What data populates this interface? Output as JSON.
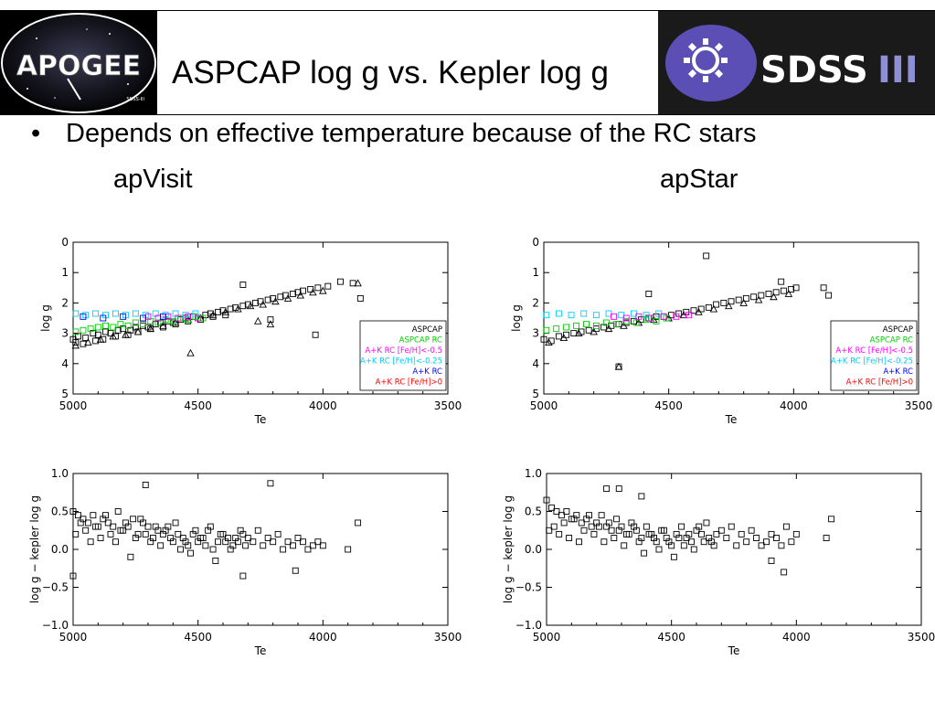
{
  "header": {
    "title": "ASPCAP log g vs. Kepler log g",
    "left_logo_text": "APOGEE",
    "left_logo_subtext": "SDSS-III",
    "right_logo_text": "SDSS",
    "right_logo_suffix": "III"
  },
  "bullet": {
    "marker": "•",
    "text": "Depends on effective temperature because of the RC stars"
  },
  "panels": {
    "left_label": "apVisit",
    "right_label": "apStar"
  },
  "colors": {
    "aspcap": "#000000",
    "aspcap_rc": "#00cc00",
    "rc_metal_poor": "#ff00ff",
    "rc_mid": "#00ccff",
    "rc_all": "#0000ff",
    "rc_metal_rich": "#ff0000"
  },
  "chart_data": [
    {
      "id": "apvisit-logg",
      "type": "scatter",
      "xlabel": "Te",
      "ylabel": "log g",
      "xlim": [
        5000,
        3500
      ],
      "ylim": [
        0,
        5
      ],
      "y_inverted": true,
      "xticks": [
        "5000",
        "4500",
        "4000",
        "3500"
      ],
      "yticks": [
        "0",
        "1",
        "2",
        "3",
        "4",
        "5"
      ],
      "legend_position": "bottom-right",
      "legend": [
        {
          "label": "ASPCAP",
          "color": "#000000"
        },
        {
          "label": "ASPCAP RC",
          "color": "#00cc00"
        },
        {
          "label": "A+K RC [Fe/H]<-0.5",
          "color": "#ff00ff"
        },
        {
          "label": "A+K RC [Fe/H]<-0.25",
          "color": "#00ccff"
        },
        {
          "label": "A+K RC",
          "color": "#0000ff"
        },
        {
          "label": "A+K RC [Fe/H]>0",
          "color": "#ff0000"
        }
      ],
      "series": [
        {
          "color": "#000000",
          "marker": "square",
          "x": [
            5000,
            4980,
            4950,
            4920,
            4900,
            4870,
            4850,
            4820,
            4800,
            4770,
            4750,
            4720,
            4700,
            4670,
            4650,
            4620,
            4600,
            4570,
            4550,
            4520,
            4500,
            4470,
            4450,
            4420,
            4400,
            4370,
            4350,
            4320,
            4300,
            4270,
            4250,
            4220,
            4200,
            4170,
            4150,
            4120,
            4100,
            4080,
            4050,
            4020,
            3980,
            3930,
            3880,
            3850,
            4320,
            4210,
            4030,
            4990,
            4960,
            4910,
            4880,
            4830,
            4780,
            4740,
            4690,
            4640,
            4590,
            4540,
            4490,
            4440,
            4390
          ],
          "y": [
            3.2,
            3.1,
            3.15,
            3.0,
            3.05,
            2.95,
            3.0,
            2.9,
            2.85,
            2.9,
            2.8,
            2.75,
            2.8,
            2.7,
            2.65,
            2.6,
            2.65,
            2.55,
            2.5,
            2.45,
            2.5,
            2.4,
            2.35,
            2.3,
            2.25,
            2.2,
            2.15,
            2.1,
            2.05,
            2.0,
            1.95,
            1.9,
            1.85,
            1.8,
            1.75,
            1.7,
            1.65,
            1.6,
            1.55,
            1.5,
            1.45,
            1.3,
            1.35,
            1.85,
            1.4,
            2.55,
            3.05,
            3.3,
            3.35,
            3.25,
            3.2,
            3.1,
            3.05,
            2.95,
            2.85,
            2.8,
            2.7,
            2.6,
            2.55,
            2.45,
            2.4
          ]
        },
        {
          "color": "#000000",
          "marker": "triangle",
          "x": [
            4990,
            4940,
            4890,
            4840,
            4790,
            4740,
            4690,
            4640,
            4590,
            4540,
            4490,
            4440,
            4390,
            4340,
            4290,
            4240,
            4190,
            4140,
            4090,
            4040,
            4000,
            3860,
            4530,
            4260,
            4210
          ],
          "y": [
            3.4,
            3.3,
            3.2,
            3.1,
            3.05,
            2.95,
            2.85,
            2.75,
            2.65,
            2.55,
            2.5,
            2.4,
            2.3,
            2.2,
            2.1,
            2.05,
            1.95,
            1.85,
            1.75,
            1.65,
            1.6,
            1.35,
            3.65,
            2.6,
            2.7
          ]
        },
        {
          "color": "#00cc00",
          "marker": "square",
          "x": [
            4990,
            4960,
            4930,
            4900,
            4870,
            4840,
            4810,
            4780,
            4750,
            4720,
            4690,
            4660,
            4630,
            4600,
            4570,
            4540,
            4510,
            4480
          ],
          "y": [
            2.95,
            2.9,
            2.85,
            2.8,
            2.75,
            2.8,
            2.7,
            2.75,
            2.65,
            2.7,
            2.6,
            2.65,
            2.55,
            2.6,
            2.5,
            2.55,
            2.45,
            2.5
          ]
        },
        {
          "color": "#00ccff",
          "marker": "square",
          "x": [
            4990,
            4950,
            4910,
            4870,
            4830,
            4790,
            4750,
            4710,
            4670,
            4630,
            4590,
            4550,
            4510
          ],
          "y": [
            2.35,
            2.4,
            2.35,
            2.4,
            2.35,
            2.4,
            2.35,
            2.4,
            2.35,
            2.4,
            2.35,
            2.4,
            2.35
          ]
        },
        {
          "color": "#ff00ff",
          "marker": "square",
          "x": [
            4700,
            4660,
            4620,
            4580,
            4540,
            4500
          ],
          "y": [
            2.45,
            2.5,
            2.45,
            2.5,
            2.45,
            2.5
          ]
        },
        {
          "color": "#0000ff",
          "marker": "square",
          "x": [
            4960,
            4880,
            4800,
            4720,
            4640
          ],
          "y": [
            2.45,
            2.5,
            2.45,
            2.5,
            2.45
          ]
        }
      ]
    },
    {
      "id": "apstar-logg",
      "type": "scatter",
      "xlabel": "Te",
      "ylabel": "log g",
      "xlim": [
        5000,
        3500
      ],
      "ylim": [
        0,
        5
      ],
      "y_inverted": true,
      "xticks": [
        "5000",
        "4500",
        "4000",
        "3500"
      ],
      "yticks": [
        "0",
        "1",
        "2",
        "3",
        "4",
        "5"
      ],
      "legend_position": "bottom-right",
      "legend": [
        {
          "label": "ASPCAP",
          "color": "#000000"
        },
        {
          "label": "ASPCAP RC",
          "color": "#00cc00"
        },
        {
          "label": "A+K RC [Fe/H]<-0.5",
          "color": "#ff00ff"
        },
        {
          "label": "A+K RC [Fe/H]<-0.25",
          "color": "#00ccff"
        },
        {
          "label": "A+K RC",
          "color": "#0000ff"
        },
        {
          "label": "A+K RC [Fe/H]>0",
          "color": "#ff0000"
        }
      ],
      "series": [
        {
          "color": "#000000",
          "marker": "square",
          "x": [
            5000,
            4970,
            4940,
            4910,
            4880,
            4850,
            4820,
            4790,
            4760,
            4730,
            4700,
            4670,
            4640,
            4610,
            4580,
            4550,
            4520,
            4490,
            4460,
            4430,
            4400,
            4370,
            4340,
            4310,
            4280,
            4250,
            4220,
            4190,
            4160,
            4130,
            4100,
            4070,
            4040,
            4010,
            3990,
            3880,
            3860,
            4700,
            4580,
            4050,
            4350
          ],
          "y": [
            3.2,
            3.25,
            3.1,
            3.05,
            3.0,
            2.95,
            2.9,
            2.85,
            2.8,
            2.75,
            2.7,
            2.65,
            2.6,
            2.55,
            2.5,
            2.45,
            2.45,
            2.4,
            2.35,
            2.3,
            2.25,
            2.2,
            2.15,
            2.05,
            2.0,
            1.95,
            1.9,
            1.85,
            1.8,
            1.75,
            1.7,
            1.65,
            1.6,
            1.55,
            1.5,
            1.5,
            1.75,
            4.1,
            1.7,
            1.3,
            0.45
          ]
        },
        {
          "color": "#000000",
          "marker": "triangle",
          "x": [
            4980,
            4920,
            4860,
            4800,
            4740,
            4680,
            4620,
            4560,
            4500,
            4440,
            4380,
            4320,
            4260,
            4200,
            4140,
            4080,
            4020,
            4700
          ],
          "y": [
            3.3,
            3.15,
            3.0,
            2.95,
            2.85,
            2.75,
            2.65,
            2.55,
            2.5,
            2.4,
            2.3,
            2.2,
            2.1,
            2.0,
            1.9,
            1.8,
            1.7,
            4.1
          ]
        },
        {
          "color": "#00cc00",
          "marker": "square",
          "x": [
            4990,
            4950,
            4910,
            4870,
            4830,
            4790,
            4750,
            4710,
            4670,
            4630,
            4590,
            4550,
            4510
          ],
          "y": [
            2.9,
            2.85,
            2.8,
            2.75,
            2.7,
            2.75,
            2.65,
            2.7,
            2.6,
            2.65,
            2.55,
            2.6,
            2.5
          ]
        },
        {
          "color": "#00ccff",
          "marker": "square",
          "x": [
            4990,
            4940,
            4890,
            4840,
            4790,
            4740,
            4690,
            4640,
            4590,
            4540
          ],
          "y": [
            2.4,
            2.35,
            2.4,
            2.35,
            2.4,
            2.35,
            2.4,
            2.35,
            2.4,
            2.35
          ]
        },
        {
          "color": "#ff00ff",
          "marker": "square",
          "x": [
            4720,
            4670,
            4620,
            4570,
            4520,
            4470,
            4420
          ],
          "y": [
            2.45,
            2.5,
            2.45,
            2.5,
            2.45,
            2.45,
            2.4
          ]
        }
      ]
    },
    {
      "id": "apvisit-dlogg",
      "type": "scatter",
      "xlabel": "Te",
      "ylabel": "log g − kepler log g",
      "xlim": [
        5000,
        3500
      ],
      "ylim": [
        -1.0,
        1.0
      ],
      "xticks": [
        "5000",
        "4500",
        "4000",
        "3500"
      ],
      "yticks": [
        "−1.0",
        "−0.5",
        "0.0",
        "0.5",
        "1.0"
      ],
      "series": [
        {
          "color": "#000000",
          "marker": "square",
          "x": [
            5000,
            4980,
            4960,
            4940,
            4920,
            4900,
            4880,
            4860,
            4840,
            4820,
            4800,
            4780,
            4760,
            4740,
            4720,
            4700,
            4680,
            4660,
            4640,
            4620,
            4600,
            4580,
            4560,
            4540,
            4520,
            4500,
            4480,
            4460,
            4440,
            4420,
            4400,
            4380,
            4360,
            4340,
            4320,
            4300,
            4280,
            4260,
            4240,
            4220,
            4200,
            4180,
            4160,
            4140,
            4120,
            4100,
            4080,
            4060,
            4040,
            4020,
            4000,
            3900,
            3860,
            4710,
            4210,
            4320,
            4110,
            5000,
            4990,
            4970,
            4950,
            4930,
            4910,
            4890,
            4870,
            4850,
            4830,
            4810,
            4790,
            4770,
            4750,
            4730,
            4710,
            4690,
            4670,
            4650,
            4630,
            4610,
            4590,
            4570,
            4550,
            4530,
            4510,
            4490,
            4470,
            4450,
            4430,
            4410,
            4390,
            4370,
            4350,
            4330,
            4310
          ],
          "y": [
            0.5,
            0.45,
            0.4,
            0.35,
            0.45,
            0.3,
            0.4,
            0.35,
            0.3,
            0.5,
            0.25,
            0.3,
            0.4,
            0.2,
            0.35,
            0.3,
            0.15,
            0.25,
            0.2,
            0.3,
            0.1,
            0.2,
            0.15,
            0.05,
            0.2,
            0.1,
            0.15,
            0.25,
            0.0,
            0.1,
            0.2,
            0.15,
            0.05,
            0.1,
            0.2,
            0.15,
            0.1,
            0.25,
            0.05,
            0.15,
            0.1,
            0.2,
            0.0,
            0.1,
            0.05,
            0.15,
            0.1,
            0.0,
            0.05,
            0.1,
            0.05,
            0.0,
            0.35,
            0.85,
            0.87,
            -0.35,
            -0.28,
            -0.35,
            0.2,
            0.35,
            0.25,
            0.1,
            0.3,
            0.15,
            0.45,
            0.2,
            0.1,
            0.25,
            0.35,
            -0.1,
            0.15,
            0.4,
            0.2,
            0.1,
            0.3,
            0.05,
            0.25,
            0.15,
            0.35,
            0.0,
            0.1,
            -0.05,
            0.25,
            0.15,
            0.05,
            0.3,
            -0.15,
            0.2,
            0.1,
            0.0,
            0.15,
            0.25,
            0.05
          ]
        }
      ]
    },
    {
      "id": "apstar-dlogg",
      "type": "scatter",
      "xlabel": "Te",
      "ylabel": "log g − kepler log g",
      "xlim": [
        5000,
        3500
      ],
      "ylim": [
        -1.0,
        1.0
      ],
      "xticks": [
        "5000",
        "4500",
        "4000",
        "3500"
      ],
      "yticks": [
        "−1.0",
        "−0.5",
        "0.0",
        "0.5",
        "1.0"
      ],
      "series": [
        {
          "color": "#000000",
          "marker": "square",
          "x": [
            5000,
            4980,
            4960,
            4940,
            4920,
            4900,
            4880,
            4860,
            4840,
            4820,
            4800,
            4780,
            4760,
            4740,
            4720,
            4700,
            4680,
            4660,
            4640,
            4620,
            4600,
            4580,
            4560,
            4540,
            4520,
            4500,
            4480,
            4460,
            4440,
            4420,
            4400,
            4380,
            4360,
            4340,
            4320,
            4300,
            4280,
            4260,
            4240,
            4220,
            4200,
            4180,
            4160,
            4140,
            4120,
            4100,
            4080,
            4060,
            4040,
            4020,
            4000,
            3880,
            3860,
            4760,
            4710,
            4620,
            4050,
            4100,
            4990,
            4970,
            4950,
            4930,
            4910,
            4890,
            4870,
            4850,
            4830,
            4810,
            4790,
            4770,
            4750,
            4730,
            4710,
            4690,
            4670,
            4650,
            4630,
            4610,
            4590,
            4570,
            4550,
            4530,
            4510,
            4490,
            4470,
            4450,
            4430,
            4410,
            4390,
            4370,
            4350,
            4330
          ],
          "y": [
            0.65,
            0.55,
            0.5,
            0.45,
            0.5,
            0.4,
            0.45,
            0.35,
            0.4,
            0.3,
            0.35,
            0.45,
            0.3,
            0.25,
            0.4,
            0.3,
            0.2,
            0.35,
            0.25,
            0.15,
            0.3,
            0.2,
            0.1,
            0.25,
            0.15,
            0.05,
            0.2,
            0.3,
            0.15,
            0.1,
            0.25,
            0.2,
            0.35,
            0.1,
            0.2,
            0.25,
            0.15,
            0.3,
            0.05,
            0.2,
            0.1,
            0.25,
            0.15,
            0.05,
            0.1,
            0.2,
            0.15,
            0.05,
            0.3,
            0.1,
            0.2,
            0.15,
            0.4,
            0.8,
            0.8,
            0.7,
            -0.3,
            -0.15,
            0.25,
            0.3,
            0.2,
            0.35,
            0.15,
            0.4,
            0.1,
            0.25,
            0.45,
            0.2,
            0.3,
            0.1,
            0.35,
            0.15,
            0.25,
            0.05,
            0.2,
            0.3,
            0.1,
            -0.05,
            0.2,
            0.15,
            0.0,
            0.25,
            0.1,
            -0.1,
            0.15,
            0.05,
            0.2,
            0.0,
            0.3,
            0.1,
            0.15,
            0.05
          ]
        }
      ]
    }
  ]
}
